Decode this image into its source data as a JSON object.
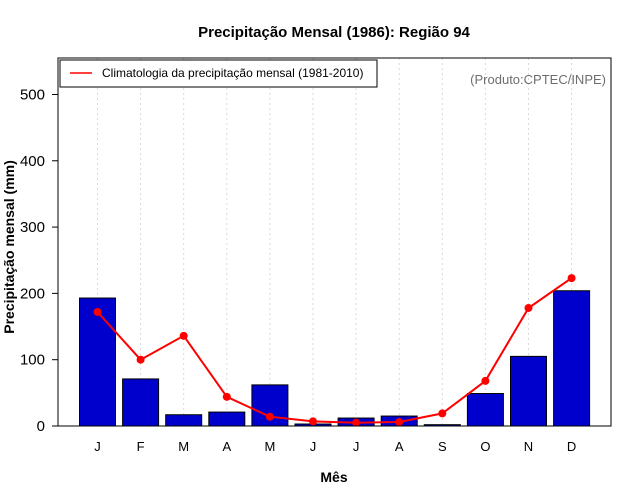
{
  "chart_data": {
    "type": "bar",
    "title": "Precipitação Mensal (1986): Região 94",
    "xlabel": "Mês",
    "ylabel": "Precipitação mensal (mm)",
    "ylim": [
      0,
      555
    ],
    "yticks": [
      0,
      100,
      200,
      300,
      400,
      500
    ],
    "ytick_labels": [
      "0",
      "100",
      "200",
      "300",
      "400",
      "500"
    ],
    "categories": [
      "J",
      "F",
      "M",
      "A",
      "M",
      "J",
      "J",
      "A",
      "S",
      "O",
      "N",
      "D"
    ],
    "series": [
      {
        "name": "Precipitação mensal (1986)",
        "type": "bar",
        "color": "#0000cd",
        "values": [
          193,
          71,
          17,
          21,
          62,
          3,
          12,
          15,
          2,
          49,
          105,
          204
        ]
      },
      {
        "name": "Climatologia da precipitação mensal (1981-2010)",
        "type": "line",
        "color": "#ff0000",
        "values": [
          172,
          100,
          136,
          44,
          14,
          7,
          5,
          6,
          19,
          68,
          178,
          223
        ]
      }
    ],
    "legend": {
      "position": "top-left",
      "label": "Climatologia da precipitação mensal (1981-2010)"
    },
    "source": "(Produto:CPTEC/INPE)",
    "grid": "vertical dotted"
  }
}
